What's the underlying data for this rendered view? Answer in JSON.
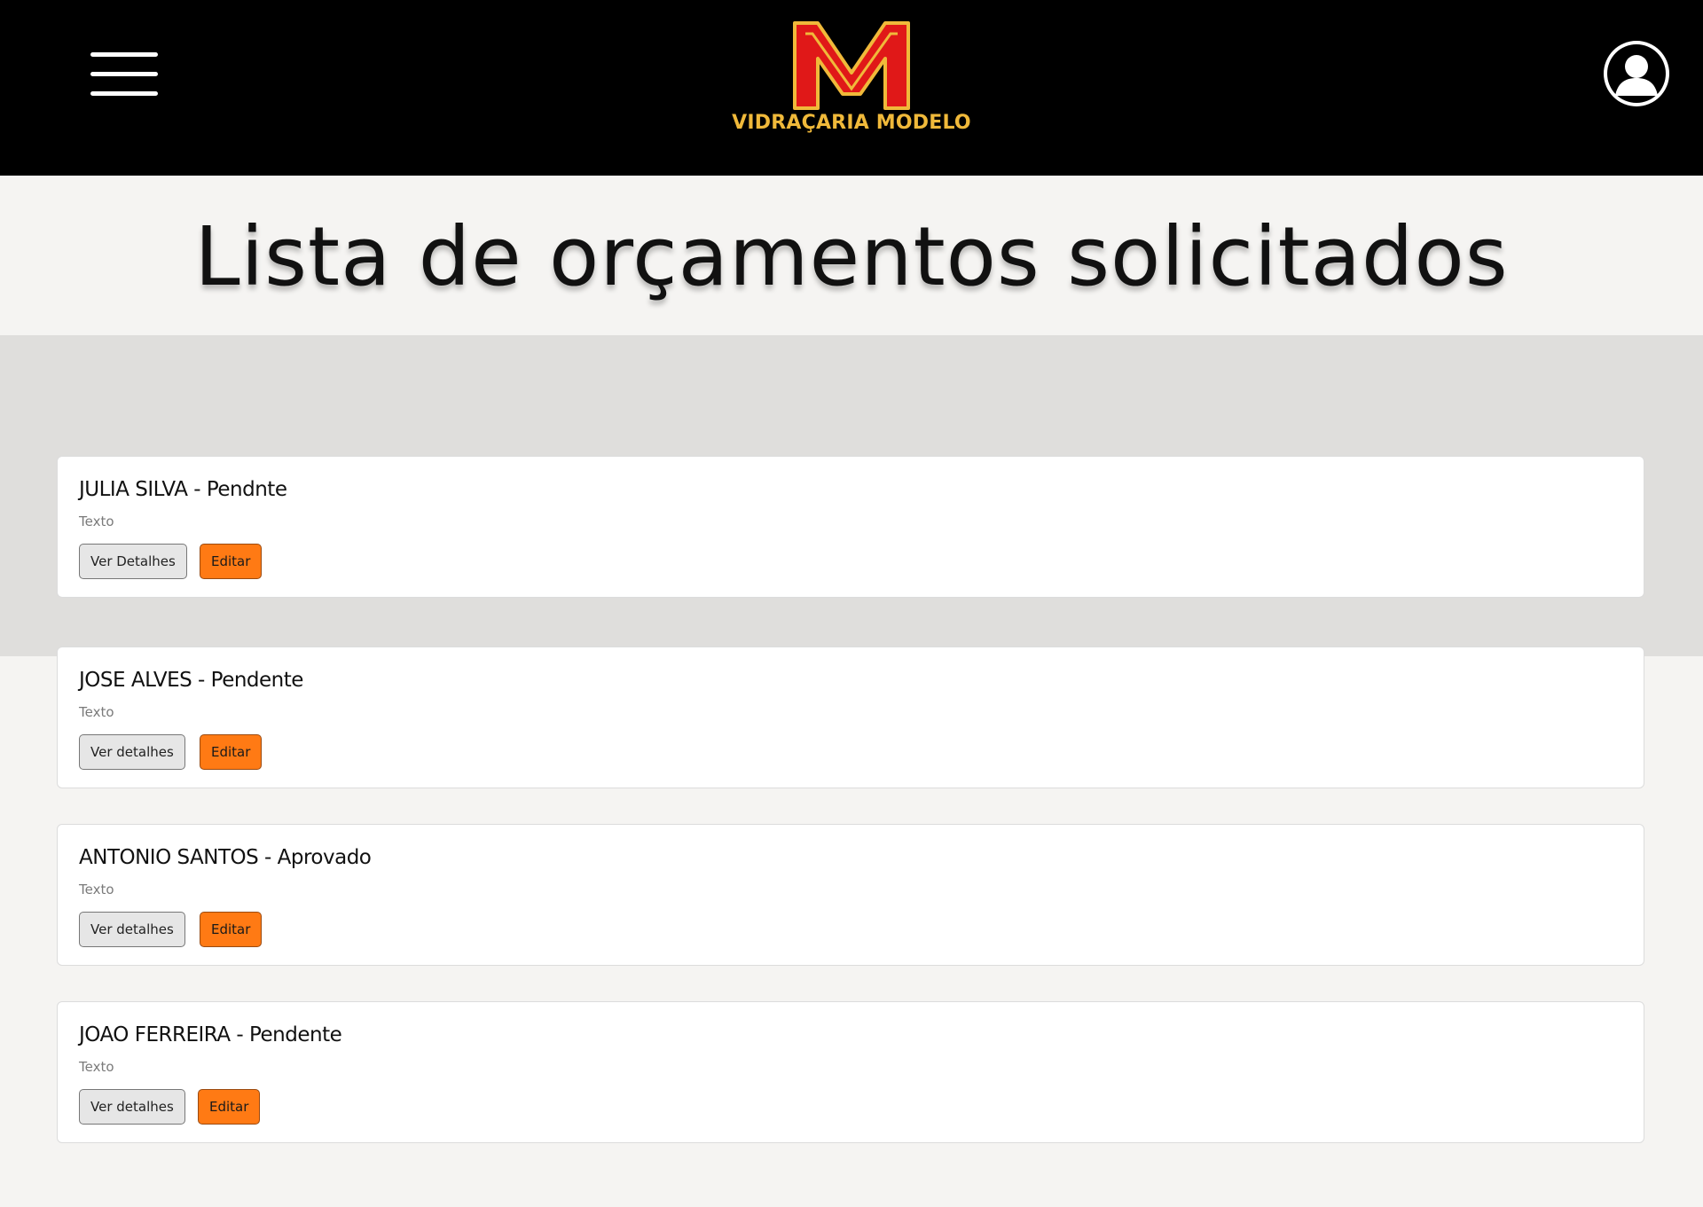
{
  "header": {
    "menu_icon": "hamburger-menu-icon",
    "logo_text": "VIDRAÇARIA MODELO",
    "logo_colors": {
      "red": "#e01818",
      "gold": "#f0b93a"
    },
    "user_icon": "user-avatar-icon"
  },
  "page": {
    "title": "Lista de orçamentos solicitados"
  },
  "colors": {
    "edit_button": "#ff7a14",
    "details_button": "#e6e6e6",
    "header_bg": "#000000"
  },
  "budgets": [
    {
      "title": "JULIA SILVA - Pendnte",
      "text": "Texto",
      "details_label": "Ver Detalhes",
      "edit_label": "Editar"
    },
    {
      "title": "JOSE ALVES - Pendente",
      "text": "Texto",
      "details_label": "Ver detalhes",
      "edit_label": "Editar"
    },
    {
      "title": "ANTONIO SANTOS - Aprovado",
      "text": "Texto",
      "details_label": "Ver detalhes",
      "edit_label": "Editar"
    },
    {
      "title": "JOAO FERREIRA - Pendente",
      "text": "Texto",
      "details_label": "Ver detalhes",
      "edit_label": "Editar"
    }
  ]
}
